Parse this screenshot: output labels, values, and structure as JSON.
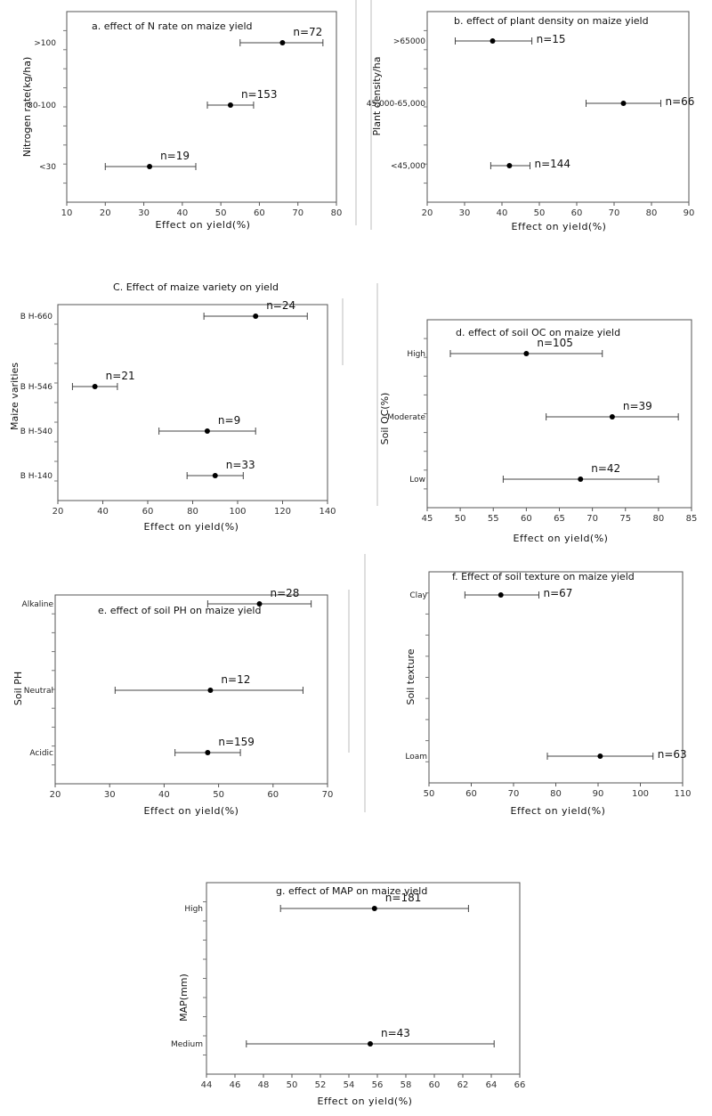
{
  "chart_data": [
    {
      "type": "scatter",
      "title": "a. effect of N rate on maize yield",
      "xlabel": "Effect on yield(%)",
      "ylabel": "Nitrogen rate(kg/ha)",
      "xlim": [
        10,
        80
      ],
      "xticks": [
        10,
        20,
        30,
        40,
        50,
        60,
        70,
        80
      ],
      "categories": [
        ">100",
        "30-100",
        "<30"
      ],
      "points": [
        {
          "category": ">100",
          "mean": 66,
          "low": 55,
          "high": 76.5,
          "n": "n=72"
        },
        {
          "category": "30-100",
          "mean": 52.5,
          "low": 46.5,
          "high": 58.5,
          "n": "n=153"
        },
        {
          "category": "<30",
          "mean": 31.5,
          "low": 20,
          "high": 43.5,
          "n": "n=19"
        }
      ],
      "grid": false
    },
    {
      "type": "scatter",
      "title": "b. effect of plant density on maize yield",
      "xlabel": "Effect on yield(%)",
      "ylabel": "Plant density/ha",
      "xlim": [
        20,
        90
      ],
      "xticks": [
        20,
        30,
        40,
        50,
        60,
        70,
        80,
        90
      ],
      "categories": [
        ">65000",
        "45,000-65,000",
        "<45,000"
      ],
      "points": [
        {
          "category": ">65000",
          "mean": 37.5,
          "low": 27.5,
          "high": 48,
          "n": "n=15"
        },
        {
          "category": "45,000-65,000",
          "mean": 72.5,
          "low": 62.5,
          "high": 82.5,
          "n": "n=66"
        },
        {
          "category": "<45,000",
          "mean": 42,
          "low": 37,
          "high": 47.5,
          "n": "n=144"
        }
      ],
      "grid": false
    },
    {
      "type": "scatter",
      "title": "C. Effect of maize variety on yield",
      "xlabel": "Effect on yield(%)",
      "ylabel": "Maize varities",
      "xlim": [
        20,
        140
      ],
      "xticks": [
        20,
        40,
        60,
        80,
        100,
        120,
        140
      ],
      "categories": [
        "B H-660",
        "B H-546",
        "B H-540",
        "B H-140"
      ],
      "points": [
        {
          "category": "B H-660",
          "mean": 108,
          "low": 85,
          "high": 131,
          "n": "n=24"
        },
        {
          "category": "B H-546",
          "mean": 36.5,
          "low": 26.5,
          "high": 46.5,
          "n": "n=21"
        },
        {
          "category": "B H-540",
          "mean": 86.5,
          "low": 65,
          "high": 108,
          "n": "n=9"
        },
        {
          "category": "B H-140",
          "mean": 90,
          "low": 77.5,
          "high": 102.5,
          "n": "n=33"
        }
      ],
      "grid": false
    },
    {
      "type": "scatter",
      "title": "d. effect of soil OC on maize yield",
      "xlabel": "Effect on yield(%)",
      "ylabel": "Soil OC(%)",
      "xlim": [
        45,
        85
      ],
      "xticks": [
        45,
        50,
        55,
        60,
        65,
        70,
        75,
        80,
        85
      ],
      "categories": [
        "High",
        "Moderate",
        "Low"
      ],
      "points": [
        {
          "category": "High",
          "mean": 60,
          "low": 48.5,
          "high": 71.5,
          "n": "n=105"
        },
        {
          "category": "Moderate",
          "mean": 73,
          "low": 63,
          "high": 83,
          "n": "n=39"
        },
        {
          "category": "Low",
          "mean": 68.2,
          "low": 56.5,
          "high": 80,
          "n": "n=42"
        }
      ],
      "grid": false
    },
    {
      "type": "scatter",
      "title": "e. effect of soil PH on maize yield",
      "xlabel": "Effect on yield(%)",
      "ylabel": "Soil PH",
      "xlim": [
        20,
        70
      ],
      "xticks": [
        20,
        30,
        40,
        50,
        60,
        70
      ],
      "categories": [
        "Alkaline",
        "Neutral",
        "Acidic"
      ],
      "points": [
        {
          "category": "Alkaline",
          "mean": 57.5,
          "low": 48,
          "high": 67,
          "n": "n=28"
        },
        {
          "category": "Neutral",
          "mean": 48.5,
          "low": 31,
          "high": 65.5,
          "n": "n=12"
        },
        {
          "category": "Acidic",
          "mean": 48,
          "low": 42,
          "high": 54,
          "n": "n=159"
        }
      ],
      "grid": false
    },
    {
      "type": "scatter",
      "title": "f. Effect of soil texture on maize yield",
      "xlabel": "Effect on yield(%)",
      "ylabel": "Soil texture",
      "xlim": [
        50,
        110
      ],
      "xticks": [
        50,
        60,
        70,
        80,
        90,
        100,
        110
      ],
      "categories": [
        "Clay",
        "Loam"
      ],
      "points": [
        {
          "category": "Clay",
          "mean": 67,
          "low": 58.5,
          "high": 76,
          "n": "n=67"
        },
        {
          "category": "Loam",
          "mean": 90.5,
          "low": 78,
          "high": 103,
          "n": "n=63"
        }
      ],
      "grid": false
    },
    {
      "type": "scatter",
      "title": "g. effect of MAP on maize yield",
      "xlabel": "Effect on yield(%)",
      "ylabel": "MAP(mm)",
      "xlim": [
        44,
        66
      ],
      "xticks": [
        44,
        46,
        48,
        50,
        52,
        54,
        56,
        58,
        60,
        62,
        64,
        66
      ],
      "categories": [
        "High",
        "Medium"
      ],
      "points": [
        {
          "category": "High",
          "mean": 55.8,
          "low": 49.2,
          "high": 62.4,
          "n": "n=181"
        },
        {
          "category": "Medium",
          "mean": 55.5,
          "low": 46.8,
          "high": 64.2,
          "n": "n=43"
        }
      ],
      "grid": false
    }
  ]
}
